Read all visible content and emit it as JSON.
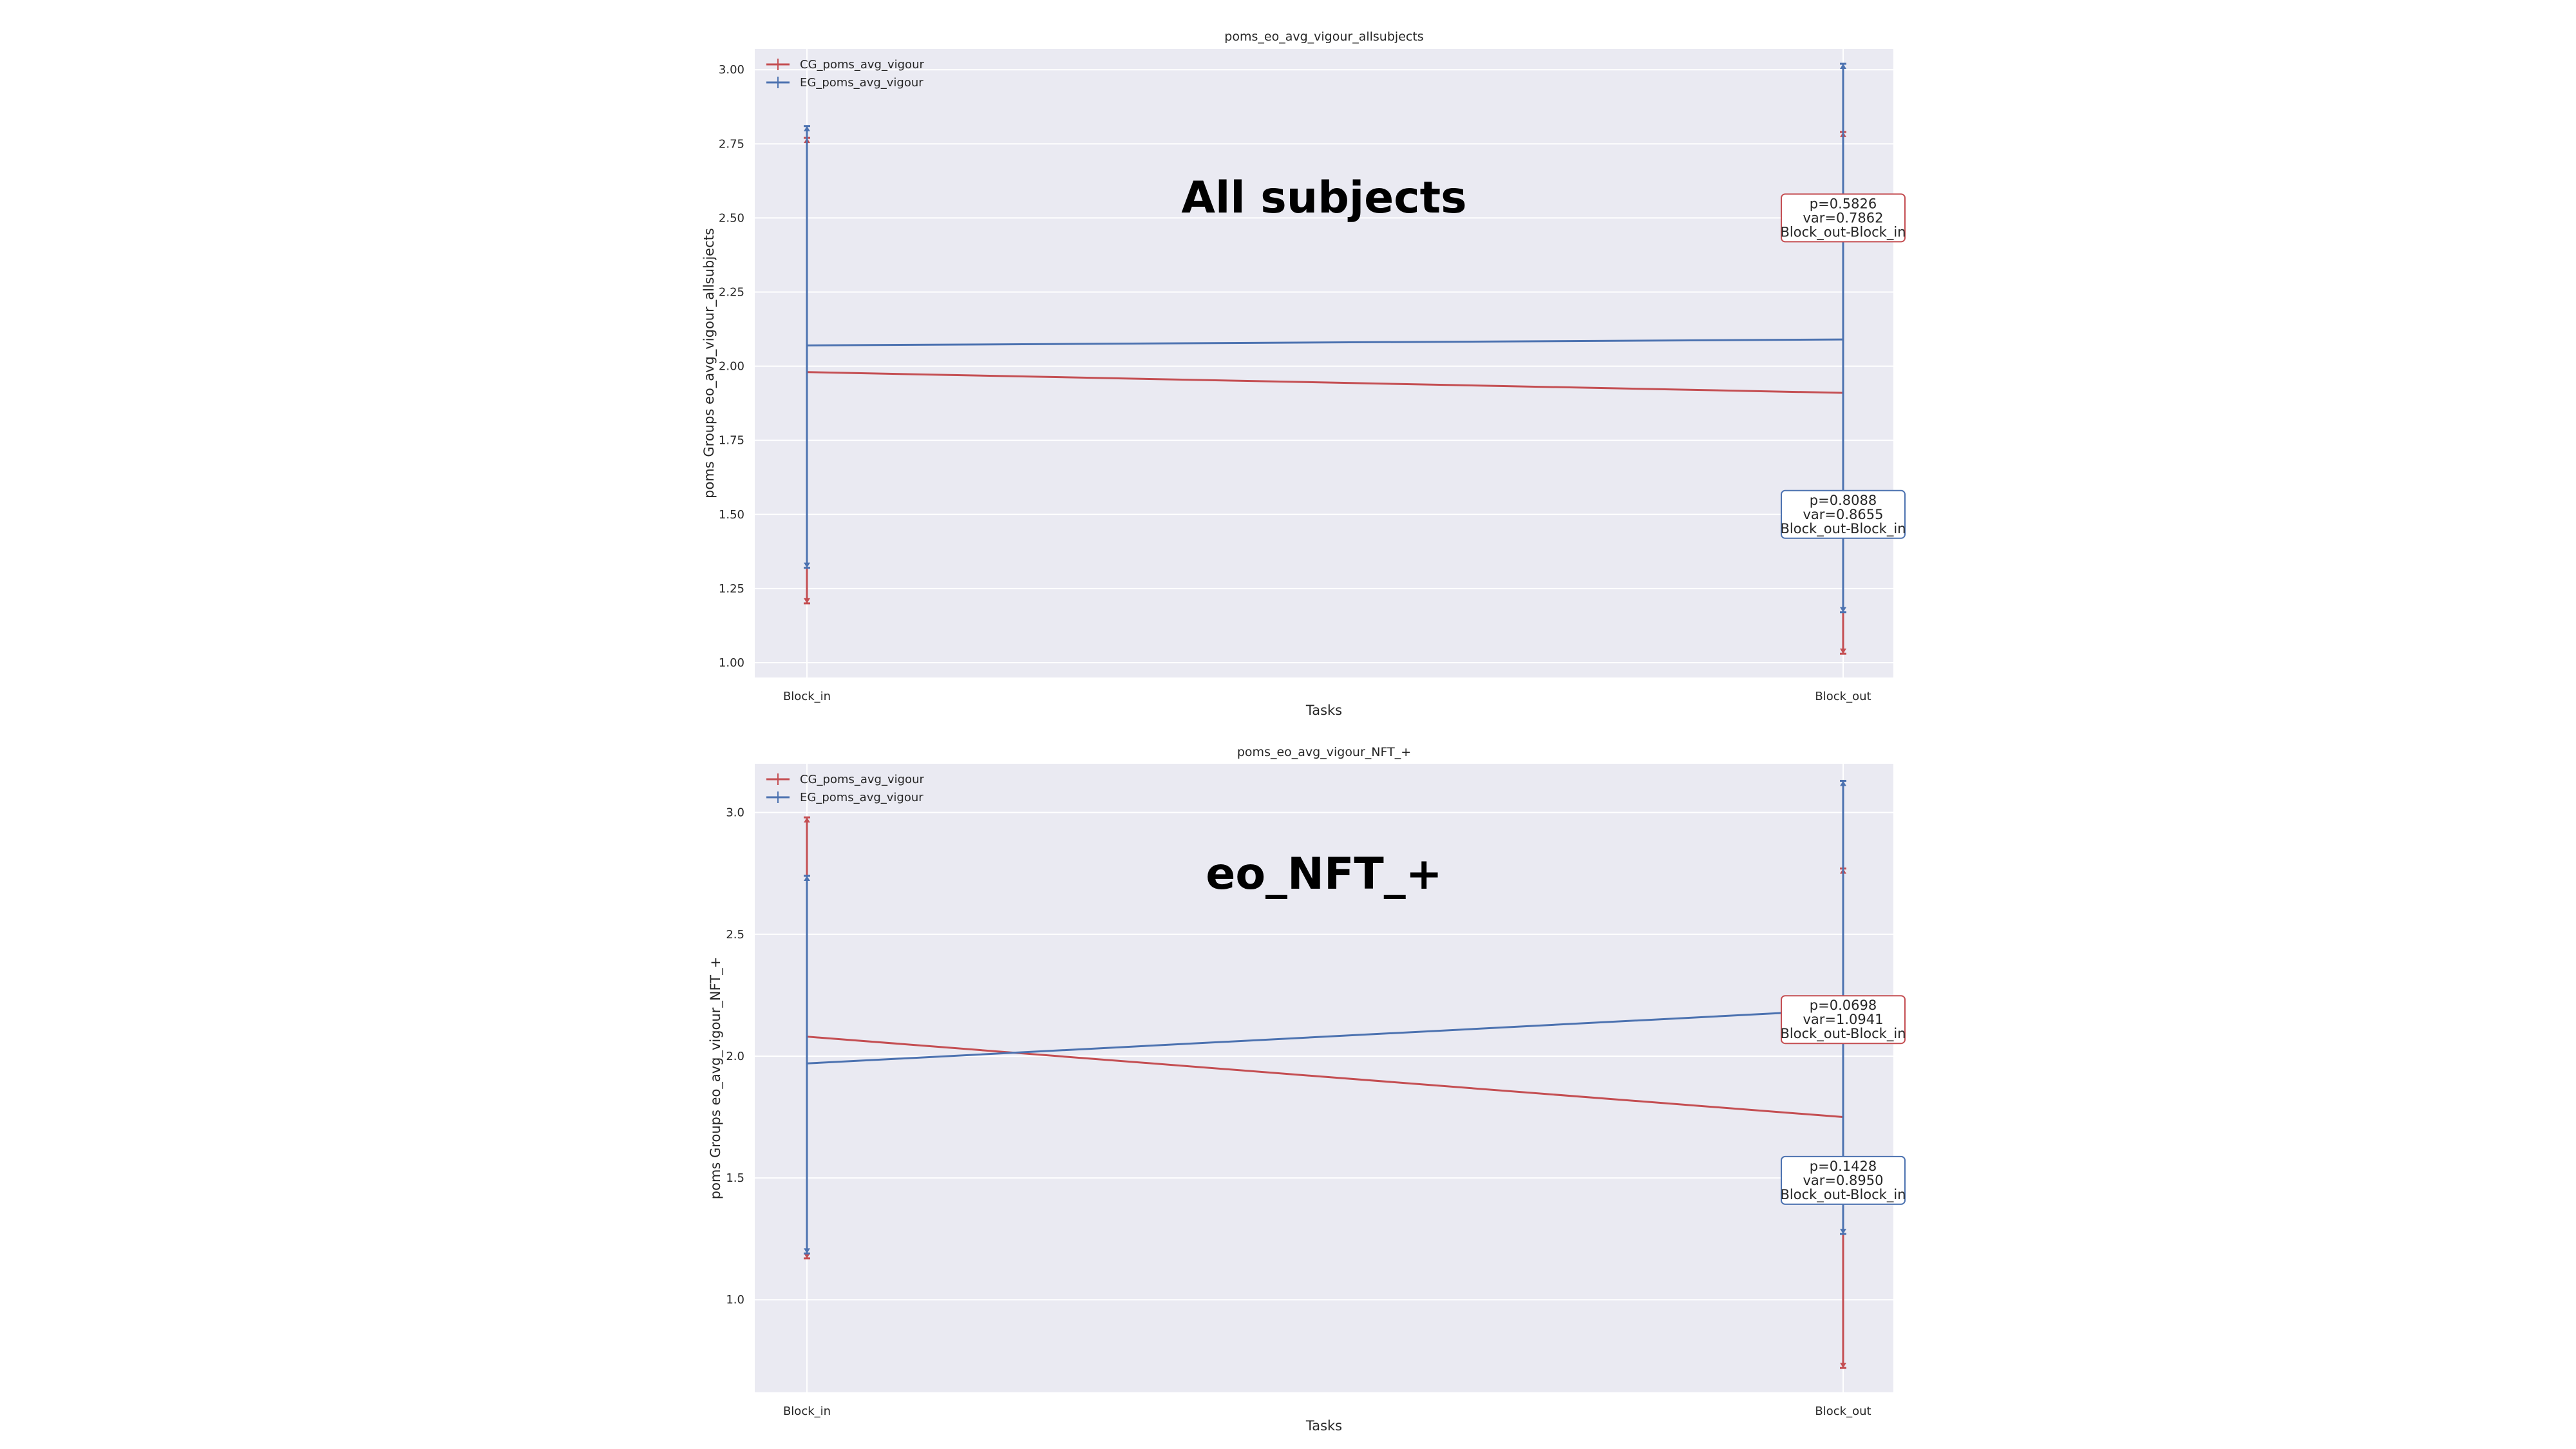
{
  "colors": {
    "cg": "#c44e52",
    "eg": "#4c72b0",
    "plot_bg": "#eaeaf2",
    "grid": "#ffffff"
  },
  "chart_data": [
    {
      "type": "line",
      "title": "poms_eo_avg_vigour_allsubjects",
      "overlay_text": "All subjects",
      "xlabel": "Tasks",
      "ylabel": "poms Groups eo_avg_vigour_allsubjects",
      "categories": [
        "Block_in",
        "Block_out"
      ],
      "ylim": [
        0.95,
        3.07
      ],
      "yticks": [
        1.0,
        1.25,
        1.5,
        1.75,
        2.0,
        2.25,
        2.5,
        2.75,
        3.0
      ],
      "ytick_labels": [
        "1.00",
        "1.25",
        "1.50",
        "1.75",
        "2.00",
        "2.25",
        "2.50",
        "2.75",
        "3.00"
      ],
      "grid": true,
      "legend_position": "top-left",
      "series": [
        {
          "name": "CG_poms_avg_vigour",
          "color_key": "cg",
          "values": [
            1.98,
            1.91
          ],
          "lower": [
            1.2,
            1.03
          ],
          "upper": [
            2.77,
            2.79
          ]
        },
        {
          "name": "EG_poms_avg_vigour",
          "color_key": "eg",
          "values": [
            2.07,
            2.09
          ],
          "lower": [
            1.32,
            1.17
          ],
          "upper": [
            2.81,
            3.02
          ]
        }
      ],
      "annotations": [
        {
          "series": "CG_poms_avg_vigour",
          "lines": [
            "p=0.5826",
            "var=0.7862",
            "Block_out-Block_in"
          ],
          "anchor_value": 2.5
        },
        {
          "series": "EG_poms_avg_vigour",
          "lines": [
            "p=0.8088",
            "var=0.8655",
            "Block_out-Block_in"
          ],
          "anchor_value": 1.5
        }
      ]
    },
    {
      "type": "line",
      "title": "poms_eo_avg_vigour_NFT_+",
      "overlay_text": "eo_NFT_+",
      "xlabel": "Tasks",
      "ylabel": "poms Groups eo_avg_vigour_NFT_+",
      "categories": [
        "Block_in",
        "Block_out"
      ],
      "ylim": [
        0.62,
        3.2
      ],
      "yticks": [
        1.0,
        1.5,
        2.0,
        2.5,
        3.0
      ],
      "ytick_labels": [
        "1.0",
        "1.5",
        "2.0",
        "2.5",
        "3.0"
      ],
      "grid": true,
      "legend_position": "top-left",
      "series": [
        {
          "name": "CG_poms_avg_vigour",
          "color_key": "cg",
          "values": [
            2.08,
            1.75
          ],
          "lower": [
            1.17,
            0.72
          ],
          "upper": [
            2.98,
            2.77
          ]
        },
        {
          "name": "EG_poms_avg_vigour",
          "color_key": "eg",
          "values": [
            1.97,
            2.19
          ],
          "lower": [
            1.19,
            1.27
          ],
          "upper": [
            2.74,
            3.13
          ]
        }
      ],
      "annotations": [
        {
          "series": "CG_poms_avg_vigour",
          "lines": [
            "p=0.0698",
            "var=1.0941",
            "Block_out-Block_in"
          ],
          "anchor_value": 2.15
        },
        {
          "series": "EG_poms_avg_vigour",
          "lines": [
            "p=0.1428",
            "var=0.8950",
            "Block_out-Block_in"
          ],
          "anchor_value": 1.49
        }
      ]
    }
  ]
}
